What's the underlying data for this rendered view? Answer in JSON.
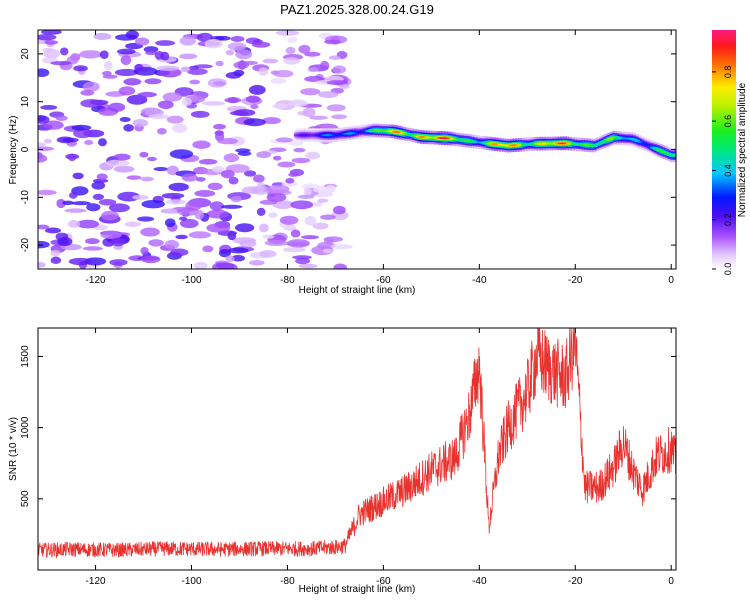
{
  "title": "PAZ1.2025.328.00.24.G19",
  "chart_data": [
    {
      "type": "heatmap",
      "name": "spectrogram",
      "xlabel": "Height of straight line (km)",
      "ylabel": "Frequency (Hz)",
      "xlim": [
        -132,
        1
      ],
      "ylim": [
        -25,
        25
      ],
      "xticks": [
        -120,
        -100,
        -80,
        -60,
        -40,
        -20,
        0
      ],
      "yticks": [
        -20,
        -10,
        0,
        10,
        20
      ],
      "xtick_labels": [
        "-120",
        "-100",
        "-80",
        "-60",
        "-40",
        "-20",
        "0"
      ],
      "ytick_labels": [
        "-20",
        "-10",
        "0",
        "10",
        "20"
      ],
      "colorbar": {
        "label": "Normalized spectral amplitude",
        "range": [
          0,
          0.97
        ],
        "ticks": [
          0.0,
          0.2,
          0.4,
          0.6,
          0.8
        ],
        "tick_labels": [
          "0.0",
          "0.2",
          "0.4",
          "0.6",
          "0.8"
        ]
      },
      "noise_region_km": [
        -132,
        -68
      ],
      "noise_amplitude": [
        0.05,
        0.25
      ],
      "signal_ridge": {
        "height_km": [
          -78,
          -70,
          -62,
          -58,
          -52,
          -46,
          -40,
          -34,
          -28,
          -22,
          -16,
          -12,
          -8,
          -4,
          0
        ],
        "frequency_hz": [
          3,
          3,
          4,
          3.8,
          2.6,
          2.3,
          1.5,
          0.8,
          1.2,
          1.3,
          0.8,
          2.5,
          2.2,
          0.5,
          -1.2
        ],
        "amplitude": [
          0.25,
          0.35,
          0.55,
          0.8,
          0.95,
          0.85,
          0.6,
          0.9,
          0.8,
          0.85,
          0.7,
          0.55,
          0.45,
          0.5,
          0.6
        ]
      }
    },
    {
      "type": "line",
      "name": "snr",
      "xlabel": "Height of straight line (km)",
      "ylabel": "SNR (10 * v/v)",
      "xlim": [
        -132,
        1
      ],
      "ylim": [
        0,
        1700
      ],
      "xticks": [
        -120,
        -100,
        -80,
        -60,
        -40,
        -20,
        0
      ],
      "yticks": [
        500,
        1000,
        1500
      ],
      "xtick_labels": [
        "-120",
        "-100",
        "-80",
        "-60",
        "-40",
        "-20",
        "0"
      ],
      "ytick_labels": [
        "500",
        "1000",
        "1500"
      ],
      "color": "#e8322e",
      "x": [
        -132,
        -125,
        -115,
        -105,
        -95,
        -85,
        -75,
        -70,
        -68,
        -65,
        -60,
        -55,
        -50,
        -45,
        -42,
        -40,
        -38,
        -36,
        -34,
        -30,
        -28,
        -25,
        -22,
        -20,
        -18,
        -15,
        -12,
        -10,
        -8,
        -6,
        -3,
        0,
        1
      ],
      "y": [
        140,
        145,
        140,
        150,
        145,
        150,
        150,
        160,
        170,
        390,
        480,
        570,
        700,
        790,
        1100,
        1450,
        300,
        800,
        1000,
        1250,
        1500,
        1400,
        1350,
        1600,
        580,
        580,
        720,
        900,
        700,
        560,
        800,
        850,
        760
      ]
    }
  ]
}
